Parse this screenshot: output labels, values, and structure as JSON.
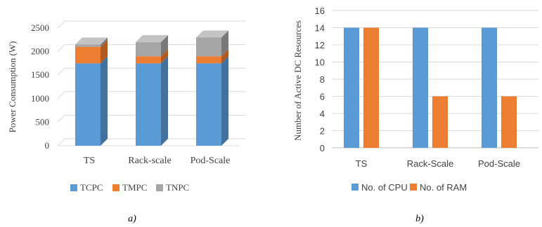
{
  "chart_data": [
    {
      "type": "bar",
      "stacked": true,
      "style": "3d",
      "panel_label": "a)",
      "ylabel": "Power Consumption (W)",
      "xlabel": "",
      "categories": [
        "TS",
        "Rack-scale",
        "Pod-Scale"
      ],
      "series": [
        {
          "name": "TCPC",
          "values": [
            1750,
            1750,
            1750
          ],
          "color": "#5b9bd5",
          "side_color": "#41719c",
          "top_color": "#8fb8e1"
        },
        {
          "name": "TMPC",
          "values": [
            350,
            150,
            150
          ],
          "color": "#ed7d31",
          "side_color": "#ae5a21",
          "top_color": "#f4a56e"
        },
        {
          "name": "TNPC",
          "values": [
            50,
            300,
            400
          ],
          "color": "#a5a5a5",
          "side_color": "#787878",
          "top_color": "#c3c3c3"
        }
      ],
      "ylim": [
        0,
        2500
      ],
      "yticks": [
        0,
        500,
        1000,
        1500,
        2000,
        2500
      ],
      "ytick_labels": [
        "0",
        "500",
        "1000",
        "1500",
        "2000",
        "2500"
      ],
      "grid": true,
      "legend_position": "bottom"
    },
    {
      "type": "bar",
      "panel_label": "b)",
      "ylabel": "Number of Active DC Resources",
      "xlabel": "",
      "categories": [
        "TS",
        "Rack-Scale",
        "Pod-Scale"
      ],
      "series": [
        {
          "name": "No. of CPU",
          "values": [
            14,
            14,
            14
          ],
          "color": "#5b9bd5"
        },
        {
          "name": "No. of RAM",
          "values": [
            14,
            6,
            6
          ],
          "color": "#ed7d31"
        }
      ],
      "ylim": [
        0,
        16
      ],
      "yticks": [
        0,
        2,
        4,
        6,
        8,
        10,
        12,
        14,
        16
      ],
      "ytick_labels": [
        "0",
        "2",
        "4",
        "6",
        "8",
        "10",
        "12",
        "14",
        "16"
      ],
      "grid": true,
      "legend_position": "bottom"
    }
  ]
}
